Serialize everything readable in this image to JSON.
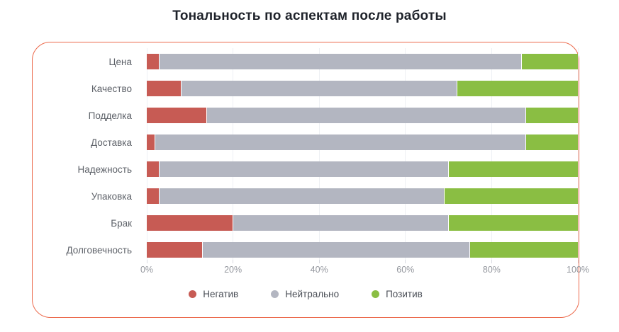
{
  "title": "Тональность по аспектам после работы",
  "colors": {
    "negative": "#c75b54",
    "neutral": "#b3b6c1",
    "positive": "#8abe43",
    "card_border": "#ec6a4c",
    "gridline": "#eef0f4",
    "axis_tick": "#d9dbe1",
    "axis_text": "#94979e",
    "category_text": "#5e6269",
    "legend_text": "#4b4f57",
    "title_text": "#1e222a"
  },
  "chart_data": {
    "type": "bar",
    "orientation": "horizontal",
    "stacked": true,
    "title": "Тональность по аспектам после работы",
    "categories": [
      "Цена",
      "Качество",
      "Подделка",
      "Доставка",
      "Надежность",
      "Упаковка",
      "Брак",
      "Долговечность"
    ],
    "series": [
      {
        "key": "negative",
        "name": "Негатив",
        "color": "#c75b54",
        "values": [
          3,
          8,
          14,
          2,
          3,
          3,
          20,
          13
        ]
      },
      {
        "key": "neutral",
        "name": "Нейтрально",
        "color": "#b3b6c1",
        "values": [
          84,
          64,
          74,
          86,
          67,
          66,
          50,
          62
        ]
      },
      {
        "key": "positive",
        "name": "Позитив",
        "color": "#8abe43",
        "values": [
          13,
          28,
          12,
          12,
          30,
          31,
          30,
          25
        ]
      }
    ],
    "x_ticks": [
      "0%",
      "20%",
      "40%",
      "60%",
      "80%",
      "100%"
    ],
    "xlim": [
      0,
      100
    ],
    "unit": "%",
    "grid": "vertical-light",
    "legend_position": "bottom"
  }
}
